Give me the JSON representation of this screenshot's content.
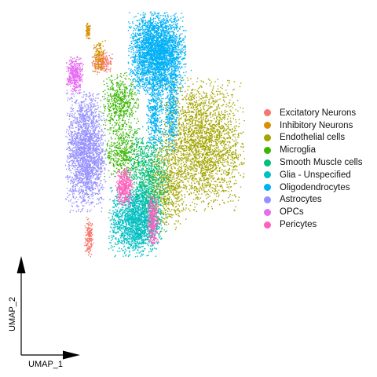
{
  "chart_data": {
    "type": "scatter",
    "title": "",
    "xlabel": "UMAP_1",
    "ylabel": "UMAP_2",
    "xlim": [
      0,
      100
    ],
    "ylim": [
      0,
      100
    ],
    "grid": false,
    "legend_position": "right",
    "series": [
      {
        "name": "Excitatory Neurons",
        "color": "#F8766D",
        "clusters": [
          {
            "x": 26.0,
            "y": 26.5,
            "sx": 0.9,
            "sy": 3.2,
            "n": 160
          },
          {
            "x": 32.0,
            "y": 86.8,
            "sx": 2.2,
            "sy": 1.6,
            "n": 200
          }
        ]
      },
      {
        "name": "Inhibitory Neurons",
        "color": "#D89000",
        "clusters": [
          {
            "x": 25.5,
            "y": 97.3,
            "sx": 0.6,
            "sy": 1.4,
            "n": 80
          },
          {
            "x": 30.5,
            "y": 89.0,
            "sx": 1.4,
            "sy": 2.6,
            "n": 150
          }
        ]
      },
      {
        "name": "Endothelial cells",
        "color": "#A3A500",
        "clusters": [
          {
            "x": 77.0,
            "y": 58.5,
            "sx": 9.0,
            "sy": 10.5,
            "n": 2600
          },
          {
            "x": 60.5,
            "y": 44.0,
            "sx": 4.5,
            "sy": 7.0,
            "n": 650
          }
        ]
      },
      {
        "name": "Microglia",
        "color": "#39B600",
        "clusters": [
          {
            "x": 40.0,
            "y": 72.5,
            "sx": 4.0,
            "sy": 5.0,
            "n": 550
          },
          {
            "x": 41.5,
            "y": 55.5,
            "sx": 4.0,
            "sy": 4.0,
            "n": 420
          }
        ]
      },
      {
        "name": "Smooth Muscle cells",
        "color": "#00BF7D",
        "clusters": [
          {
            "x": 52.5,
            "y": 45.0,
            "sx": 4.5,
            "sy": 9.0,
            "n": 1100
          }
        ]
      },
      {
        "name": "Glia - Unspecified",
        "color": "#00BFC4",
        "clusters": [
          {
            "x": 47.0,
            "y": 32.0,
            "sx": 5.5,
            "sy": 5.5,
            "n": 1700
          }
        ]
      },
      {
        "name": "Oligodendrocytes",
        "color": "#00B0F6",
        "clusters": [
          {
            "x": 57.0,
            "y": 90.0,
            "sx": 6.0,
            "sy": 6.5,
            "n": 3200
          },
          {
            "x": 56.0,
            "y": 69.0,
            "sx": 1.8,
            "sy": 6.0,
            "n": 400
          },
          {
            "x": 63.5,
            "y": 70.5,
            "sx": 1.5,
            "sy": 6.5,
            "n": 380
          }
        ]
      },
      {
        "name": "Astrocytes",
        "color": "#9590FF",
        "clusters": [
          {
            "x": 24.5,
            "y": 56.0,
            "sx": 4.2,
            "sy": 9.5,
            "n": 2200
          }
        ]
      },
      {
        "name": "OPCs",
        "color": "#E76BF3",
        "clusters": [
          {
            "x": 19.5,
            "y": 82.5,
            "sx": 1.8,
            "sy": 3.0,
            "n": 380
          }
        ]
      },
      {
        "name": "Pericytes",
        "color": "#FF62BC",
        "clusters": [
          {
            "x": 42.0,
            "y": 44.0,
            "sx": 1.8,
            "sy": 3.0,
            "n": 420
          },
          {
            "x": 55.0,
            "y": 32.5,
            "sx": 1.2,
            "sy": 4.0,
            "n": 330
          }
        ]
      }
    ]
  }
}
